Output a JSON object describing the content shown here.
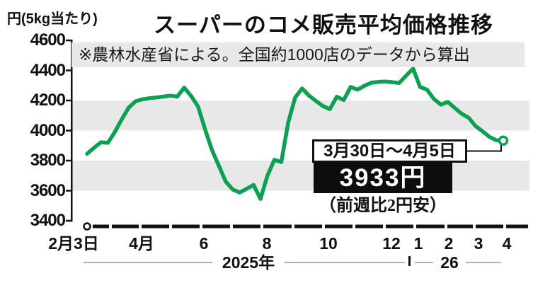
{
  "unit_label": "円(5kg当たり)",
  "title": "スーパーのコメ販売平均価格推移",
  "note": "※農林水産省による。全国約1000店のデータから算出",
  "callout": {
    "period": "3月30日～4月5日",
    "price": "3933円",
    "change": "（前週比2円安）"
  },
  "chart_data": {
    "type": "line",
    "title": "スーパーのコメ販売平均価格推移",
    "ylabel": "円(5kg当たり)",
    "ylim": [
      3400,
      4600
    ],
    "y_ticks": [
      4600,
      4400,
      4200,
      4000,
      3800,
      3600,
      3400
    ],
    "x_unit": "week",
    "x_tick_labels": [
      "2月3日",
      "4月",
      "6",
      "8",
      "10",
      "12",
      "1",
      "2",
      "3",
      "4"
    ],
    "year_labels": [
      "2025年",
      "26"
    ],
    "grid": "alternating horizontal bands",
    "legend": "none",
    "line_color": "#0ea052",
    "series": [
      {
        "name": "平均価格",
        "start_week": "2月3日",
        "end_week": "3月30日～4月5日",
        "values": [
          3845,
          3885,
          3922,
          3918,
          3990,
          4075,
          4152,
          4195,
          4208,
          4215,
          4220,
          4226,
          4232,
          4226,
          4285,
          4230,
          4160,
          4010,
          3871,
          3765,
          3660,
          3608,
          3588,
          3612,
          3638,
          3545,
          3700,
          3805,
          3790,
          4054,
          4220,
          4280,
          4232,
          4196,
          4163,
          4142,
          4225,
          4203,
          4290,
          4272,
          4298,
          4318,
          4324,
          4326,
          4322,
          4316,
          4365,
          4412,
          4290,
          4272,
          4210,
          4172,
          4190,
          4150,
          4112,
          4085,
          4030,
          3995,
          3958,
          3935,
          3933
        ]
      }
    ],
    "last_point": {
      "period": "3月30日～4月5日",
      "value": 3933,
      "change_vs_prev_week": "（前週比2円安）"
    }
  }
}
